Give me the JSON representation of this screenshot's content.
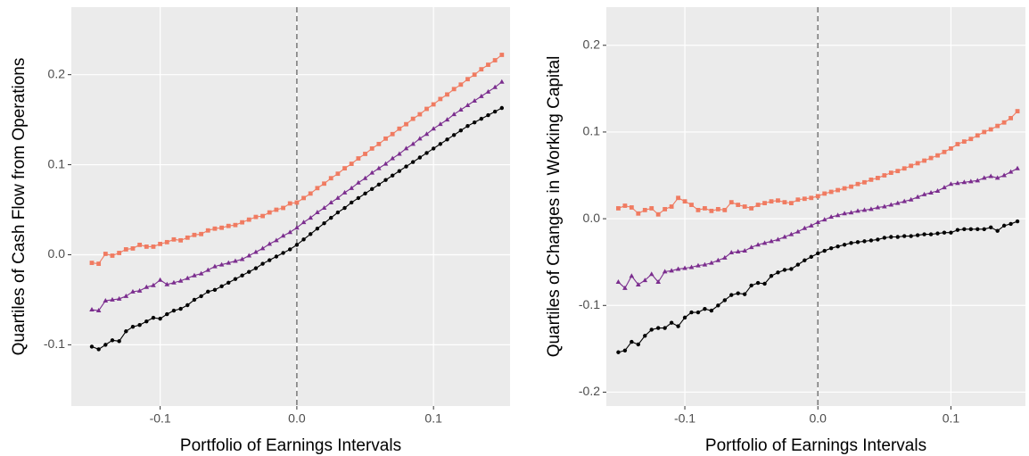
{
  "chart_data": [
    {
      "type": "line",
      "x_label": "Portfolio of Earnings Intervals",
      "y_label": "Quartiles of Cash Flow from Operations",
      "x": [
        -0.15,
        -0.145,
        -0.14,
        -0.135,
        -0.13,
        -0.125,
        -0.12,
        -0.115,
        -0.11,
        -0.105,
        -0.1,
        -0.095,
        -0.09,
        -0.085,
        -0.08,
        -0.075,
        -0.07,
        -0.065,
        -0.06,
        -0.055,
        -0.05,
        -0.045,
        -0.04,
        -0.035,
        -0.03,
        -0.025,
        -0.02,
        -0.015,
        -0.01,
        -0.005,
        0,
        0.005,
        0.01,
        0.015,
        0.02,
        0.025,
        0.03,
        0.035,
        0.04,
        0.045,
        0.05,
        0.055,
        0.06,
        0.065,
        0.07,
        0.075,
        0.08,
        0.085,
        0.09,
        0.095,
        0.1,
        0.105,
        0.11,
        0.115,
        0.12,
        0.125,
        0.13,
        0.135,
        0.14,
        0.145,
        0.15
      ],
      "series": [
        {
          "color": "#f07b61",
          "marker": "square",
          "values": [
            -0.009,
            -0.01,
            0.001,
            -0.001,
            0.002,
            0.006,
            0.007,
            0.011,
            0.009,
            0.009,
            0.012,
            0.014,
            0.017,
            0.016,
            0.019,
            0.022,
            0.023,
            0.027,
            0.029,
            0.03,
            0.032,
            0.033,
            0.036,
            0.039,
            0.042,
            0.043,
            0.047,
            0.05,
            0.052,
            0.057,
            0.058,
            0.063,
            0.068,
            0.074,
            0.079,
            0.085,
            0.09,
            0.096,
            0.101,
            0.107,
            0.112,
            0.118,
            0.123,
            0.129,
            0.134,
            0.14,
            0.145,
            0.151,
            0.156,
            0.162,
            0.167,
            0.173,
            0.178,
            0.184,
            0.189,
            0.195,
            0.2,
            0.206,
            0.211,
            0.216,
            0.222
          ]
        },
        {
          "color": "#7b2d8e",
          "marker": "triangle",
          "values": [
            -0.061,
            -0.062,
            -0.051,
            -0.05,
            -0.049,
            -0.046,
            -0.041,
            -0.04,
            -0.036,
            -0.034,
            -0.028,
            -0.033,
            -0.031,
            -0.029,
            -0.026,
            -0.023,
            -0.021,
            -0.017,
            -0.013,
            -0.011,
            -0.009,
            -0.007,
            -0.005,
            -0.001,
            0.003,
            0.007,
            0.012,
            0.016,
            0.021,
            0.025,
            0.03,
            0.036,
            0.041,
            0.047,
            0.052,
            0.058,
            0.063,
            0.069,
            0.074,
            0.08,
            0.085,
            0.091,
            0.096,
            0.101,
            0.107,
            0.112,
            0.118,
            0.123,
            0.129,
            0.134,
            0.14,
            0.145,
            0.15,
            0.156,
            0.161,
            0.166,
            0.171,
            0.176,
            0.181,
            0.186,
            0.192
          ]
        },
        {
          "color": "#000000",
          "marker": "circle",
          "values": [
            -0.102,
            -0.105,
            -0.1,
            -0.095,
            -0.096,
            -0.085,
            -0.08,
            -0.078,
            -0.074,
            -0.07,
            -0.071,
            -0.066,
            -0.062,
            -0.06,
            -0.056,
            -0.05,
            -0.046,
            -0.041,
            -0.039,
            -0.035,
            -0.031,
            -0.027,
            -0.023,
            -0.019,
            -0.015,
            -0.01,
            -0.006,
            -0.002,
            0.002,
            0.006,
            0.011,
            0.017,
            0.023,
            0.029,
            0.035,
            0.041,
            0.047,
            0.052,
            0.058,
            0.063,
            0.068,
            0.073,
            0.078,
            0.083,
            0.088,
            0.093,
            0.098,
            0.103,
            0.108,
            0.113,
            0.118,
            0.123,
            0.128,
            0.133,
            0.138,
            0.143,
            0.147,
            0.151,
            0.155,
            0.159,
            0.163
          ]
        }
      ],
      "xlim": [
        -0.165,
        0.156
      ],
      "xticks": [
        -0.1,
        {
          "value": 0,
          "label": "0.0"
        },
        0.1
      ],
      "ylim": [
        -0.168,
        0.275
      ],
      "yticks": [
        -0.1,
        {
          "value": 0,
          "label": "0.0"
        },
        0.1,
        0.2
      ],
      "vline": 0,
      "grid": true
    },
    {
      "type": "line",
      "x_label": "Portfolio of Earnings Intervals",
      "y_label": "Quartiles of Changes in Working Capital",
      "x": [
        -0.15,
        -0.145,
        -0.14,
        -0.135,
        -0.13,
        -0.125,
        -0.12,
        -0.115,
        -0.11,
        -0.105,
        -0.1,
        -0.095,
        -0.09,
        -0.085,
        -0.08,
        -0.075,
        -0.07,
        -0.065,
        -0.06,
        -0.055,
        -0.05,
        -0.045,
        -0.04,
        -0.035,
        -0.03,
        -0.025,
        -0.02,
        -0.015,
        -0.01,
        -0.005,
        0,
        0.005,
        0.01,
        0.015,
        0.02,
        0.025,
        0.03,
        0.035,
        0.04,
        0.045,
        0.05,
        0.055,
        0.06,
        0.065,
        0.07,
        0.075,
        0.08,
        0.085,
        0.09,
        0.095,
        0.1,
        0.105,
        0.11,
        0.115,
        0.12,
        0.125,
        0.13,
        0.135,
        0.14,
        0.145,
        0.15
      ],
      "series": [
        {
          "color": "#f07b61",
          "marker": "square",
          "values": [
            0.012,
            0.015,
            0.013,
            0.006,
            0.01,
            0.012,
            0.005,
            0.011,
            0.014,
            0.024,
            0.02,
            0.016,
            0.01,
            0.012,
            0.009,
            0.011,
            0.01,
            0.019,
            0.016,
            0.014,
            0.012,
            0.016,
            0.018,
            0.02,
            0.021,
            0.019,
            0.018,
            0.022,
            0.023,
            0.024,
            0.026,
            0.029,
            0.031,
            0.033,
            0.035,
            0.037,
            0.04,
            0.042,
            0.045,
            0.047,
            0.05,
            0.053,
            0.055,
            0.058,
            0.061,
            0.064,
            0.067,
            0.07,
            0.073,
            0.077,
            0.081,
            0.086,
            0.089,
            0.092,
            0.096,
            0.1,
            0.103,
            0.107,
            0.111,
            0.116,
            0.124
          ]
        },
        {
          "color": "#7b2d8e",
          "marker": "triangle",
          "values": [
            -0.073,
            -0.08,
            -0.066,
            -0.076,
            -0.071,
            -0.064,
            -0.073,
            -0.061,
            -0.06,
            -0.058,
            -0.057,
            -0.056,
            -0.054,
            -0.053,
            -0.051,
            -0.048,
            -0.045,
            -0.039,
            -0.038,
            -0.037,
            -0.033,
            -0.03,
            -0.028,
            -0.026,
            -0.024,
            -0.021,
            -0.018,
            -0.015,
            -0.011,
            -0.008,
            -0.004,
            -0.001,
            0.002,
            0.004,
            0.006,
            0.007,
            0.009,
            0.01,
            0.011,
            0.013,
            0.014,
            0.016,
            0.018,
            0.02,
            0.022,
            0.025,
            0.028,
            0.03,
            0.032,
            0.036,
            0.04,
            0.041,
            0.042,
            0.043,
            0.044,
            0.047,
            0.049,
            0.047,
            0.05,
            0.054,
            0.058
          ]
        },
        {
          "color": "#000000",
          "marker": "circle",
          "values": [
            -0.154,
            -0.152,
            -0.142,
            -0.145,
            -0.135,
            -0.128,
            -0.126,
            -0.126,
            -0.12,
            -0.124,
            -0.114,
            -0.108,
            -0.108,
            -0.104,
            -0.106,
            -0.1,
            -0.094,
            -0.088,
            -0.086,
            -0.087,
            -0.077,
            -0.074,
            -0.075,
            -0.066,
            -0.062,
            -0.059,
            -0.058,
            -0.053,
            -0.048,
            -0.044,
            -0.04,
            -0.037,
            -0.034,
            -0.032,
            -0.03,
            -0.028,
            -0.027,
            -0.026,
            -0.025,
            -0.024,
            -0.022,
            -0.021,
            -0.021,
            -0.02,
            -0.02,
            -0.019,
            -0.018,
            -0.018,
            -0.017,
            -0.016,
            -0.016,
            -0.013,
            -0.012,
            -0.012,
            -0.012,
            -0.012,
            -0.01,
            -0.014,
            -0.008,
            -0.006,
            -0.003
          ]
        }
      ],
      "xlim": [
        -0.159,
        0.156
      ],
      "xticks": [
        -0.1,
        {
          "value": 0,
          "label": "0.0"
        },
        0.1
      ],
      "ylim": [
        -0.216,
        0.244
      ],
      "yticks": [
        -0.2,
        -0.1,
        {
          "value": 0,
          "label": "0.0"
        },
        0.1,
        0.2
      ],
      "vline": 0,
      "grid": true
    }
  ]
}
